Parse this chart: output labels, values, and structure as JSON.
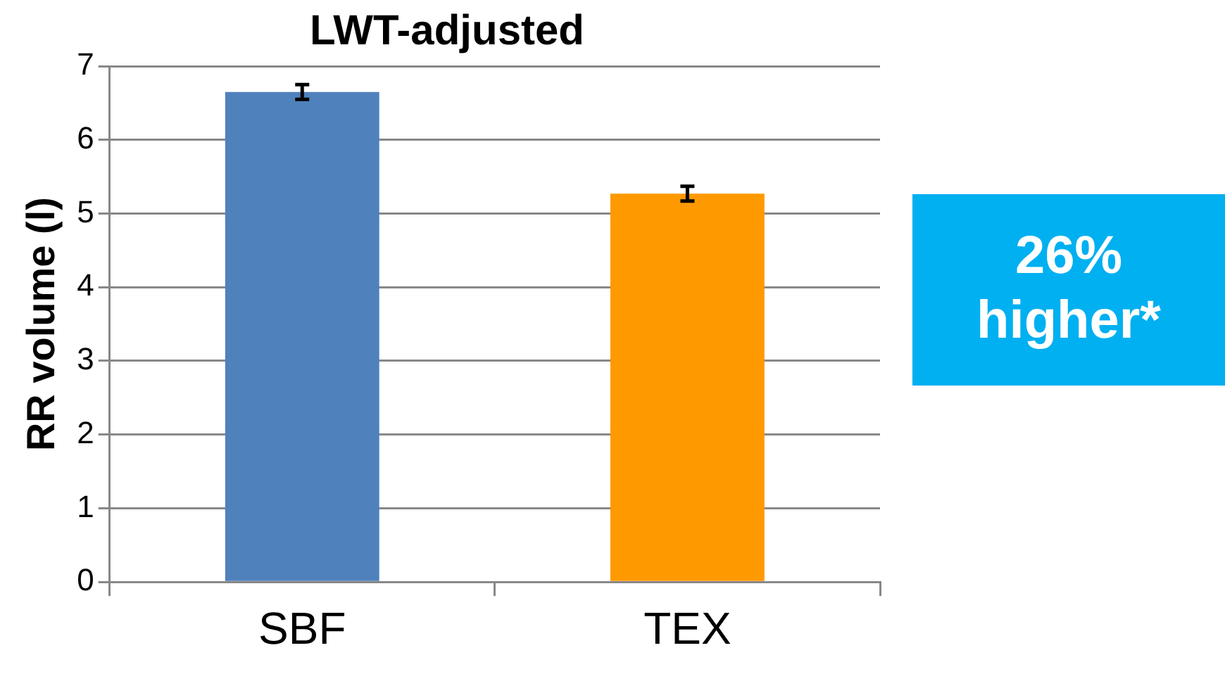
{
  "chart_data": {
    "type": "bar",
    "title": "LWT-adjusted",
    "ylabel": "RR volume (l)",
    "categories": [
      "SBF",
      "TEX"
    ],
    "values": [
      6.65,
      5.27
    ],
    "colors": [
      "#4f81bd",
      "#ff9900"
    ],
    "errors": [
      0.1,
      0.1
    ],
    "ylim": [
      0,
      7
    ],
    "yticks": [
      0,
      1,
      2,
      3,
      4,
      5,
      6,
      7
    ],
    "grid": "y",
    "legend": false,
    "annotations": [
      "26% higher*"
    ]
  }
}
